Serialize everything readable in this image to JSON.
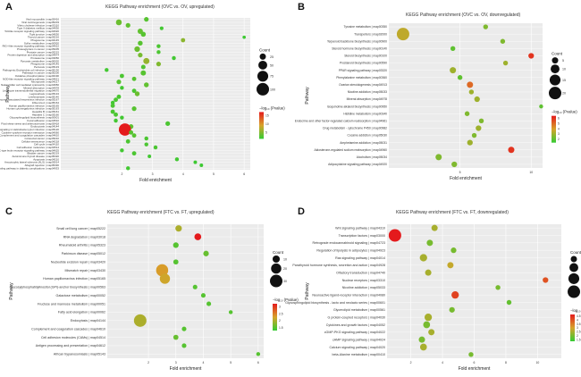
{
  "colors": {
    "high": "#e41a1c",
    "mid": "#d7a32a",
    "low": "#33cc33",
    "panel_bg": "#ebebeb",
    "grid": "#ffffff"
  },
  "chart_data": [
    {
      "type": "scatter",
      "panel_label": "A",
      "title": "KEGG Pathway enrichment (OVC vs. OV, upregulated)",
      "xlabel": "Fold enrichment",
      "ylabel": "Pathway",
      "xlim": [
        0,
        6.2
      ],
      "xticks": [
        2,
        3,
        4,
        5,
        6
      ],
      "legend_count_title": "Count",
      "legend_count_values": [
        25,
        50,
        75,
        100
      ],
      "legend_color_title": "−log₁₀ (Pvalue)",
      "legend_color_ticks": [
        15,
        10,
        5
      ],
      "color_range": [
        1.3,
        17
      ],
      "count_max": 100,
      "categories": [
        "Viral myocarditis | map05416",
        "Viral carcinogenesis | map05203",
        "Vibrio cholerae infection | map05110",
        "Type II diabetes mellitus | map04930",
        "Toll-like receptor signaling pathway | map04620",
        "Tight junction | map04530",
        "Thyroid cancer | map05216",
        "Phagosome | map04145",
        "Sulfur metabolism | map00920",
        "RIG-I-like receptor signaling pathway | map04622",
        "Proteoglycans in cancer | map05205",
        "Prostate cancer | map05215",
        "Protein digestion and absorption | map04974",
        "Proteasome | map03050",
        "Pyruvate metabolism | map00620",
        "Phagosome | map04145",
        "Pertussis | map05133",
        "Pathogenic Escherichia coli infection | map05130",
        "Pathways in cancer | map05200",
        "Oxidative phosphorylation | map00190",
        "NOD-like receptor signaling pathway | map04621",
        "Necroptosis | map04217",
        "Natural killer cell mediated cytotoxicity | map04650",
        "Mineral absorption | map04978",
        "Leukocyte transendothelial migration | map04670",
        "Legionellosis | map05134",
        "Leishmaniasis | map05140",
        "Kaposi sarcoma-associated herpesvirus infection | map05167",
        "Influenza A | map05164",
        "Human papillomavirus infection | map05165",
        "Human cytomegalovirus infection | map05163",
        "Hepatitis B | map05161",
        "Hepatitis C | map05160",
        "Glycosphingolipid biosynthesis | map00601",
        "Focal adhesion | map04510",
        "Fluid shear stress and atherosclerosis | map05418",
        "Endocytosis | map04144",
        "Epithelial cell signaling in Helicobacter pylori infection | map05120",
        "Cytokine-cytokine receptor interaction | map04060",
        "Complement and coagulation cascades | map04610",
        "Colorectal cancer | map05210",
        "Cellular senescence | map04218",
        "Cell cycle | map04110",
        "Cell adhesion molecules | map04514",
        "C-type lectin receptor signaling pathway | map04625",
        "Bladder cancer | map05219",
        "Autoimmune thyroid disease | map05320",
        "Apoptosis | map04210",
        "Amyotrophic lateral sclerosis (ALS) | map05014",
        "Allograft rejection | map05330",
        "AGE-RAGE signaling pathway in diabetic complications | map04933"
      ],
      "points": [
        {
          "x": 2.8,
          "count": 14,
          "p": 3.0
        },
        {
          "x": 1.9,
          "count": 22,
          "p": 4.0
        },
        {
          "x": 2.2,
          "count": 14,
          "p": 3.5
        },
        {
          "x": 3.3,
          "count": 9,
          "p": 2.0
        },
        {
          "x": 2.6,
          "count": 18,
          "p": 3.5
        },
        {
          "x": 2.7,
          "count": 16,
          "p": 3.0
        },
        {
          "x": 6.0,
          "count": 7,
          "p": 1.8
        },
        {
          "x": 4.0,
          "count": 12,
          "p": 5.5
        },
        {
          "x": 2.6,
          "count": 15,
          "p": 3.0
        },
        {
          "x": 3.2,
          "count": 10,
          "p": 2.5
        },
        {
          "x": 2.5,
          "count": 20,
          "p": 4.0
        },
        {
          "x": 3.2,
          "count": 10,
          "p": 2.5
        },
        {
          "x": 2.6,
          "count": 14,
          "p": 4.5
        },
        {
          "x": 3.7,
          "count": 10,
          "p": 2.0
        },
        {
          "x": 2.8,
          "count": 24,
          "p": 6.0
        },
        {
          "x": 3.2,
          "count": 14,
          "p": 5.0
        },
        {
          "x": 2.7,
          "count": 13,
          "p": 2.8
        },
        {
          "x": 1.5,
          "count": 10,
          "p": 2.0
        },
        {
          "x": 2.7,
          "count": 18,
          "p": 3.0
        },
        {
          "x": 2.0,
          "count": 12,
          "p": 2.5
        },
        {
          "x": 2.4,
          "count": 12,
          "p": 3.0
        },
        {
          "x": 1.9,
          "count": 14,
          "p": 3.0
        },
        {
          "x": 2.8,
          "count": 15,
          "p": 3.5
        },
        {
          "x": 2.0,
          "count": 10,
          "p": 2.0
        },
        {
          "x": 2.4,
          "count": 12,
          "p": 2.5
        },
        {
          "x": 2.5,
          "count": 15,
          "p": 4.0
        },
        {
          "x": 1.9,
          "count": 12,
          "p": 2.5
        },
        {
          "x": 1.8,
          "count": 12,
          "p": 2.5
        },
        {
          "x": 1.7,
          "count": 10,
          "p": 2.0
        },
        {
          "x": 1.7,
          "count": 12,
          "p": 2.5
        },
        {
          "x": 2.4,
          "count": 14,
          "p": 3.0
        },
        {
          "x": 1.7,
          "count": 12,
          "p": 2.5
        },
        {
          "x": 1.8,
          "count": 12,
          "p": 2.5
        },
        {
          "x": 2.0,
          "count": 10,
          "p": 2.0
        },
        {
          "x": 1.8,
          "count": 10,
          "p": 2.0
        },
        {
          "x": 3.5,
          "count": 14,
          "p": 2.5
        },
        {
          "x": 2.3,
          "count": 14,
          "p": 3.5
        },
        {
          "x": 2.1,
          "count": 95,
          "p": 17.0
        },
        {
          "x": 2.3,
          "count": 12,
          "p": 3.0
        },
        {
          "x": 2.4,
          "count": 12,
          "p": 3.0
        },
        {
          "x": 2.8,
          "count": 10,
          "p": 2.5
        },
        {
          "x": 2.2,
          "count": 12,
          "p": 2.5
        },
        {
          "x": 2.8,
          "count": 10,
          "p": 2.5
        },
        {
          "x": 3.1,
          "count": 10,
          "p": 2.5
        },
        {
          "x": 2.0,
          "count": 10,
          "p": 2.0
        },
        {
          "x": 2.4,
          "count": 12,
          "p": 2.5
        },
        {
          "x": 2.9,
          "count": 8,
          "p": 2.0
        },
        {
          "x": 3.8,
          "count": 10,
          "p": 2.0
        },
        {
          "x": 4.4,
          "count": 8,
          "p": 1.8
        },
        {
          "x": 4.6,
          "count": 8,
          "p": 1.8
        },
        {
          "x": 2.2,
          "count": 10,
          "p": 2.0
        }
      ]
    },
    {
      "type": "scatter",
      "panel_label": "B",
      "title": "KEGG Pathway enrichment (OVC vs. OV, downregulated)",
      "xlabel": "Fold enrichment",
      "ylabel": "Pathway",
      "xlim": [
        0,
        10.8
      ],
      "xticks": [
        5,
        10
      ],
      "legend_count_title": "Count",
      "legend_count_values": [
        5,
        10,
        15,
        20
      ],
      "legend_color_title": "−log₁₀ (Pvalue)",
      "legend_color_ticks": [
        6,
        5,
        4,
        3,
        2
      ],
      "color_range": [
        1.3,
        6.5
      ],
      "count_max": 20,
      "categories": [
        "Tyrosine metabolism | map00350",
        "Transporters | map02000",
        "Terpenoid backbone biosynthesis | map00900",
        "Steroid hormone biosynthesis | map00140",
        "Steroid biosynthesis | map00100",
        "Prostanoid biosynthesis | map00590",
        "PPAR signaling pathway | map03320",
        "Phenylalanine metabolism | map00360",
        "Ovarian steroidogenesis | map04913",
        "Nicotine addiction | map05033",
        "Mineral absorption | map04978",
        "Isoquinoline alkaloid biosynthesis | map00950",
        "Histidine metabolism | map00340",
        "Endocrine and other factor-regulated calcium reabsorption | map04961",
        "Drug metabolism - cytochrome P450 | map00982",
        "Cocaine addiction | map05030",
        "Amphetamine addiction | map05031",
        "Aldosterone-regulated sodium reabsorption | map04960",
        "Alcoholism | map05034",
        "Adipocytokine signaling pathway | map04920"
      ],
      "points": [
        {
          "x": 6.8,
          "count": 3,
          "p": 2.5
        },
        {
          "x": 1.0,
          "count": 20,
          "p": 3.5
        },
        {
          "x": 8.0,
          "count": 3,
          "p": 2.5
        },
        {
          "x": 4.5,
          "count": 3,
          "p": 2.0
        },
        {
          "x": 10.0,
          "count": 4,
          "p": 6.0
        },
        {
          "x": 8.2,
          "count": 3,
          "p": 3.0
        },
        {
          "x": 4.5,
          "count": 5,
          "p": 3.0
        },
        {
          "x": 5.0,
          "count": 3,
          "p": 2.0
        },
        {
          "x": 5.7,
          "count": 5,
          "p": 5.0
        },
        {
          "x": 5.8,
          "count": 3,
          "p": 3.0
        },
        {
          "x": 6.2,
          "count": 4,
          "p": 3.0
        },
        {
          "x": 10.7,
          "count": 2,
          "p": 2.0
        },
        {
          "x": 5.5,
          "count": 3,
          "p": 2.5
        },
        {
          "x": 6.5,
          "count": 3,
          "p": 2.5
        },
        {
          "x": 6.3,
          "count": 4,
          "p": 3.0
        },
        {
          "x": 6.0,
          "count": 3,
          "p": 2.5
        },
        {
          "x": 5.7,
          "count": 4,
          "p": 3.0
        },
        {
          "x": 8.6,
          "count": 5,
          "p": 6.0
        },
        {
          "x": 3.5,
          "count": 5,
          "p": 2.5
        },
        {
          "x": 4.6,
          "count": 4,
          "p": 2.5
        }
      ]
    },
    {
      "type": "scatter",
      "panel_label": "C",
      "title": "KEGG Pathway enrichment (FTC vs. FT, upregulated)",
      "xlabel": "Fold enrichment",
      "ylabel": "Pathway",
      "xlim": [
        0.5,
        6.2
      ],
      "xticks": [
        2,
        3,
        4,
        5,
        6
      ],
      "legend_count_title": "Count",
      "legend_count_values": [
        10,
        20,
        30
      ],
      "legend_color_title": "−log₁₀ (Pvalue)",
      "legend_color_ticks": [
        3.0,
        2.5,
        2.0,
        1.5
      ],
      "color_range": [
        1.3,
        3.2
      ],
      "count_max": 30,
      "categories": [
        "Small cell lung cancer | map05222",
        "RNA degradation | map03018",
        "Rheumatoid arthritis | map05323",
        "Parkinson disease | map05012",
        "Nucleotide excision repair | map03420",
        "Mismatch repair | map03430",
        "Human papillomavirus infection | map05165",
        "Glycosylphosphatidylinositol (GPI)-anchor biosynthesis | map00563",
        "Galactose metabolism | map00052",
        "Fructose and mannose metabolism | map00051",
        "Fatty acid elongation | map00062",
        "Endocytosis | map04144",
        "Complement and coagulation cascades | map04610",
        "Cell adhesion molecules (CAMs) | map04514",
        "Antigen processing and presentation | map04612",
        "African trypanosomiasis | map05143"
      ],
      "points": [
        {
          "x": 3.1,
          "count": 8,
          "p": 2.0
        },
        {
          "x": 3.8,
          "count": 9,
          "p": 3.2
        },
        {
          "x": 3.0,
          "count": 6,
          "p": 1.5
        },
        {
          "x": 4.1,
          "count": 6,
          "p": 1.6
        },
        {
          "x": 3.0,
          "count": 5,
          "p": 1.5
        },
        {
          "x": 2.5,
          "count": 28,
          "p": 2.3
        },
        {
          "x": 2.6,
          "count": 20,
          "p": 2.2
        },
        {
          "x": 3.7,
          "count": 4,
          "p": 1.5
        },
        {
          "x": 4.0,
          "count": 4,
          "p": 1.5
        },
        {
          "x": 4.2,
          "count": 4,
          "p": 1.5
        },
        {
          "x": 5.0,
          "count": 3,
          "p": 1.5
        },
        {
          "x": 1.7,
          "count": 30,
          "p": 2.0
        },
        {
          "x": 3.3,
          "count": 4,
          "p": 1.5
        },
        {
          "x": 3.0,
          "count": 5,
          "p": 1.6
        },
        {
          "x": 3.3,
          "count": 4,
          "p": 1.5
        },
        {
          "x": 6.0,
          "count": 3,
          "p": 1.5
        }
      ]
    },
    {
      "type": "scatter",
      "panel_label": "D",
      "title": "KEGG Pathway enrichment (FTC vs. FT, downregulated)",
      "xlabel": "Fold enrichment",
      "ylabel": "Pathway",
      "xlim": [
        0.5,
        11.5
      ],
      "xticks": [
        2,
        4,
        6,
        8,
        10
      ],
      "legend_count_title": "Count",
      "legend_count_values": [
        5,
        10,
        15,
        20
      ],
      "legend_color_title": "−log₁₀ (Pvalue)",
      "legend_color_ticks": [
        4.5,
        4.0,
        3.5,
        3.0,
        2.5,
        2.0,
        1.5
      ],
      "color_range": [
        1.3,
        4.7
      ],
      "count_max": 20,
      "categories": [
        "Wnt signaling pathway | map04310",
        "Transcription factors | map03000",
        "Retrograde endocannabinoid signaling | map04723",
        "Regulation of lipolysis in adipocytes | map04923",
        "Ras signaling pathway | map04014",
        "Parathyroid hormone synthesis, secretion and action | map04928",
        "Olfactory transduction | map04740",
        "Nuclear receptors | map03310",
        "Nicotine addiction | map05033",
        "Neuroactive ligand-receptor interaction | map04080",
        "Glycosphingolipid biosynthesis - lacto and neolacto series | map00601",
        "Glycerolipid metabolism | map00561",
        "G protein-coupled receptors | map04030",
        "Cytokines and growth factors | map04052",
        "cGMP-PKG signaling pathway | map04022",
        "cAMP signaling pathway | map04024",
        "Calcium signaling pathway | map04020",
        "beta-Alanine metabolism | map00410"
      ],
      "points": [
        {
          "x": 3.5,
          "count": 5,
          "p": 2.5
        },
        {
          "x": 1.0,
          "count": 20,
          "p": 4.7
        },
        {
          "x": 3.2,
          "count": 5,
          "p": 2.0
        },
        {
          "x": 4.7,
          "count": 4,
          "p": 2.0
        },
        {
          "x": 2.8,
          "count": 7,
          "p": 2.5
        },
        {
          "x": 4.5,
          "count": 5,
          "p": 2.8
        },
        {
          "x": 3.1,
          "count": 5,
          "p": 2.5
        },
        {
          "x": 10.5,
          "count": 4,
          "p": 4.0
        },
        {
          "x": 7.5,
          "count": 3,
          "p": 2.0
        },
        {
          "x": 4.8,
          "count": 7,
          "p": 4.2
        },
        {
          "x": 8.2,
          "count": 3,
          "p": 1.8
        },
        {
          "x": 4.6,
          "count": 4,
          "p": 2.0
        },
        {
          "x": 3.1,
          "count": 7,
          "p": 2.5
        },
        {
          "x": 3.0,
          "count": 6,
          "p": 2.0
        },
        {
          "x": 3.3,
          "count": 5,
          "p": 2.5
        },
        {
          "x": 2.7,
          "count": 5,
          "p": 2.0
        },
        {
          "x": 2.8,
          "count": 6,
          "p": 2.5
        },
        {
          "x": 5.8,
          "count": 3,
          "p": 2.0
        }
      ]
    }
  ]
}
